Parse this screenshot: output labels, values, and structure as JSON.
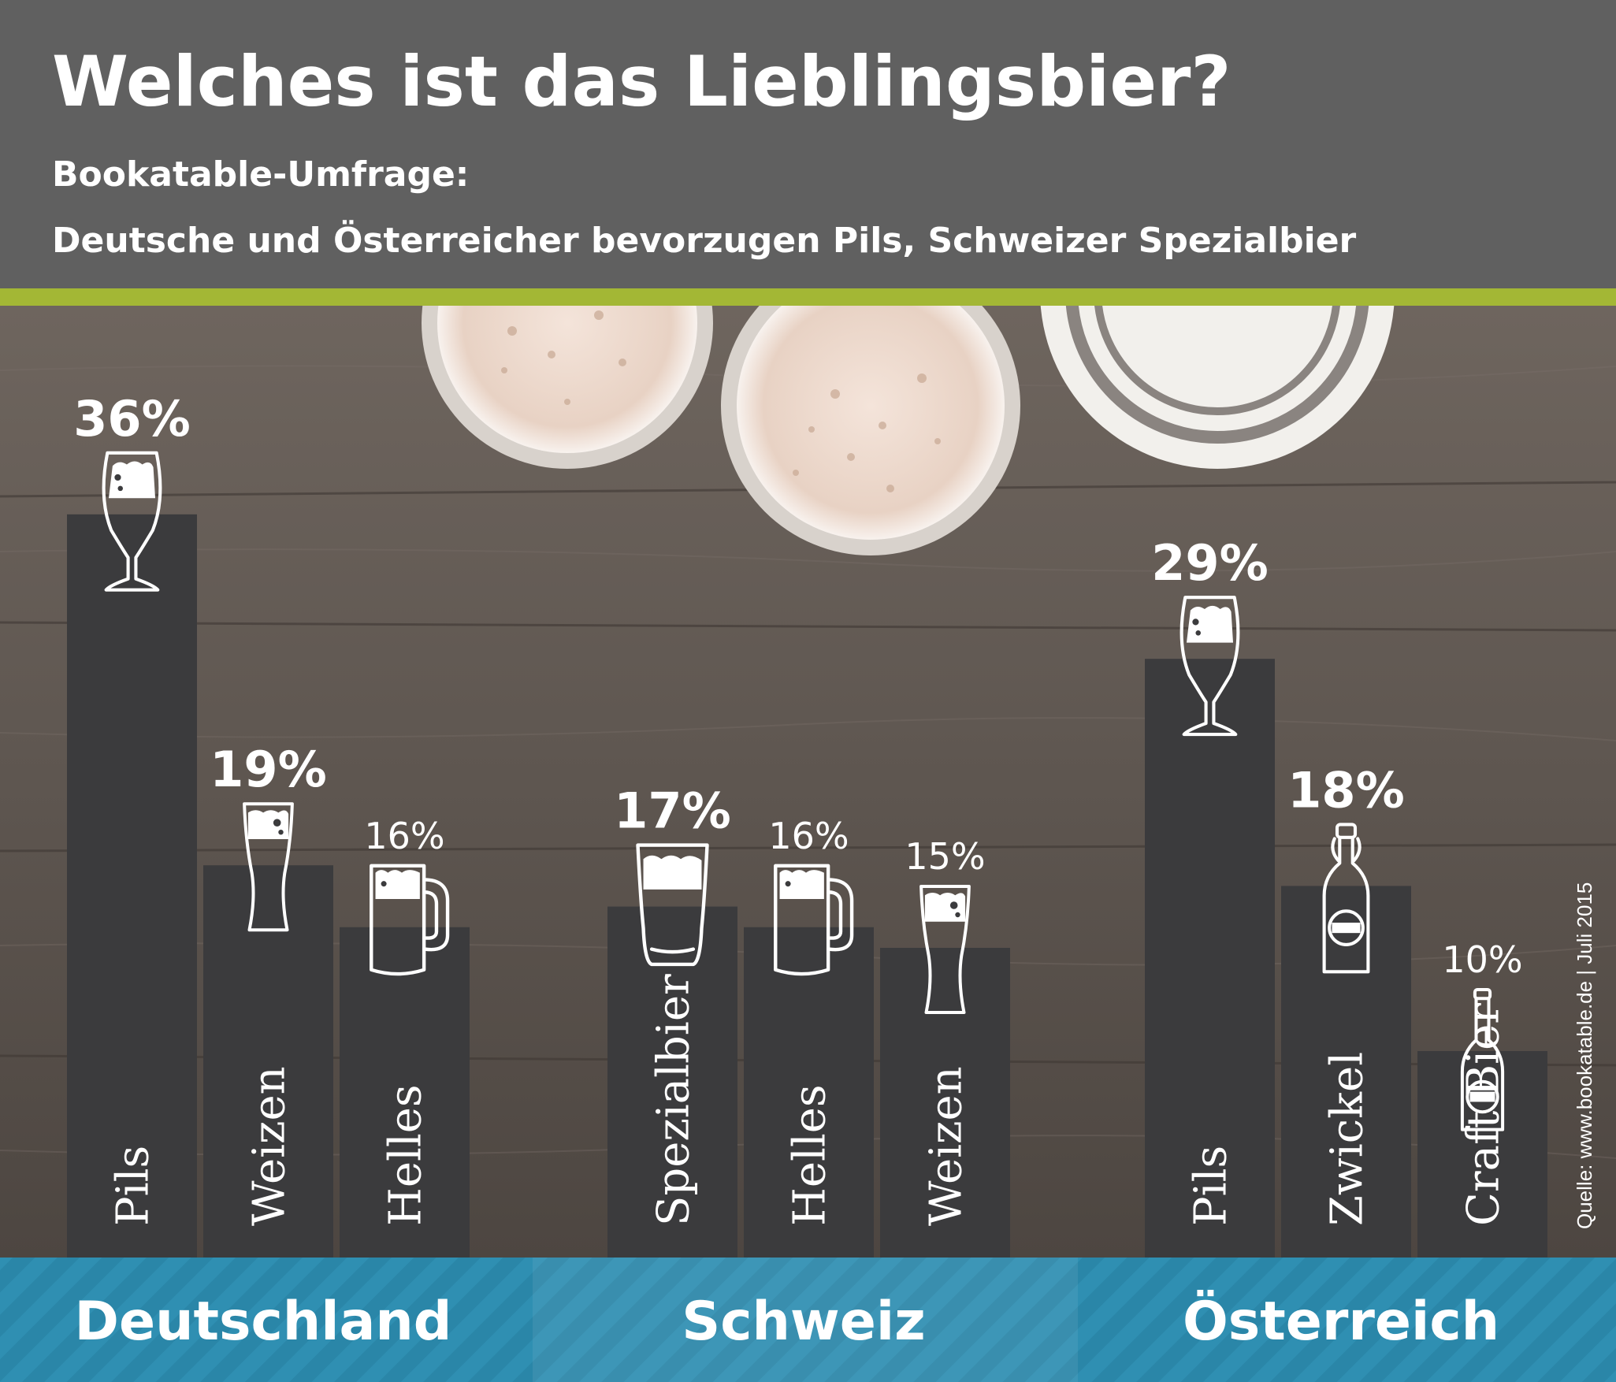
{
  "header": {
    "title": "Welches ist das Lieblingsbier?",
    "subtitle_line1": "Bookatable-Umfrage:",
    "subtitle_line2": "Deutsche und Österreicher bevorzugen Pils, Schweizer Spezialbier"
  },
  "colors": {
    "header_bg": "#606060",
    "accent_stripe": "#a3b735",
    "bar": "#3b3b3d",
    "footer": "#2a86a8",
    "text": "#ffffff"
  },
  "chart_data": {
    "type": "bar",
    "title": "Welches ist das Lieblingsbier?",
    "unit": "%",
    "ylim": [
      0,
      40
    ],
    "groups": [
      {
        "country": "Deutschland",
        "bars": [
          {
            "category": "Pils",
            "value": 36,
            "label": "36%",
            "icon": "tulip-glass-icon"
          },
          {
            "category": "Weizen",
            "value": 19,
            "label": "19%",
            "icon": "weizen-glass-icon"
          },
          {
            "category": "Helles",
            "value": 16,
            "label": "16%",
            "icon": "beer-mug-icon"
          }
        ]
      },
      {
        "country": "Schweiz",
        "bars": [
          {
            "category": "Spezialbier",
            "value": 17,
            "label": "17%",
            "icon": "pint-glass-icon"
          },
          {
            "category": "Helles",
            "value": 16,
            "label": "16%",
            "icon": "beer-mug-icon"
          },
          {
            "category": "Weizen",
            "value": 15,
            "label": "15%",
            "icon": "weizen-glass-icon"
          }
        ]
      },
      {
        "country": "Österreich",
        "bars": [
          {
            "category": "Pils",
            "value": 29,
            "label": "29%",
            "icon": "tulip-glass-icon"
          },
          {
            "category": "Zwickel",
            "value": 18,
            "label": "18%",
            "icon": "swing-top-bottle-icon"
          },
          {
            "category": "Craft Bier",
            "value": 10,
            "label": "10%",
            "icon": "long-neck-bottle-icon"
          }
        ]
      }
    ],
    "source": "Quelle: www.bookatable.de | Juli 2015"
  }
}
